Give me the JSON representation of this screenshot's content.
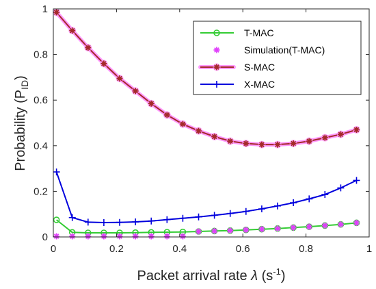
{
  "chart_data": {
    "type": "line",
    "xlabel": {
      "text": "Packet arrival rate",
      "symbol": "λ",
      "unit_base": " (s",
      "unit_sup": "-1",
      "unit_close": ")"
    },
    "ylabel": {
      "text": "Probability (P",
      "sub": "ID",
      "close": ")"
    },
    "xlim": [
      0,
      1
    ],
    "ylim": [
      0,
      1
    ],
    "xticks": [
      "0",
      "0.2",
      "0.4",
      "0.6",
      "0.8",
      "1"
    ],
    "yticks": [
      "0",
      "0.2",
      "0.4",
      "0.6",
      "0.8",
      "1"
    ],
    "grid": false,
    "legend_position": "top-right",
    "x": [
      0.01,
      0.06,
      0.11,
      0.16,
      0.21,
      0.26,
      0.31,
      0.36,
      0.41,
      0.46,
      0.51,
      0.56,
      0.61,
      0.66,
      0.71,
      0.76,
      0.81,
      0.86,
      0.91,
      0.96
    ],
    "series": [
      {
        "name": "T-MAC",
        "color": "#33cc33",
        "marker": "circle",
        "line": true,
        "values": [
          0.075,
          0.02,
          0.018,
          0.018,
          0.018,
          0.019,
          0.02,
          0.021,
          0.022,
          0.024,
          0.026,
          0.028,
          0.031,
          0.034,
          0.037,
          0.041,
          0.045,
          0.05,
          0.055,
          0.062
        ]
      },
      {
        "name": "Simulation(T-MAC)",
        "color": "#e040fb",
        "marker": "asterisk",
        "line": false,
        "values": [
          0.003,
          0.003,
          0.003,
          0.003,
          0.003,
          0.003,
          0.003,
          0.003,
          0.003,
          0.024,
          0.026,
          0.028,
          0.031,
          0.034,
          0.037,
          0.041,
          0.045,
          0.05,
          0.055,
          0.062
        ]
      },
      {
        "name": "S-MAC",
        "color": "#a52a2a",
        "marker": "star",
        "line": true,
        "halo": "#ff99ff",
        "values": [
          0.985,
          0.905,
          0.83,
          0.76,
          0.695,
          0.64,
          0.585,
          0.535,
          0.495,
          0.465,
          0.44,
          0.42,
          0.41,
          0.405,
          0.405,
          0.41,
          0.42,
          0.435,
          0.45,
          0.47
        ]
      },
      {
        "name": "X-MAC",
        "color": "#0000dd",
        "marker": "plus",
        "line": true,
        "values": [
          0.285,
          0.085,
          0.065,
          0.063,
          0.064,
          0.066,
          0.07,
          0.076,
          0.082,
          0.088,
          0.095,
          0.103,
          0.112,
          0.123,
          0.136,
          0.15,
          0.167,
          0.186,
          0.215,
          0.248
        ]
      }
    ]
  }
}
